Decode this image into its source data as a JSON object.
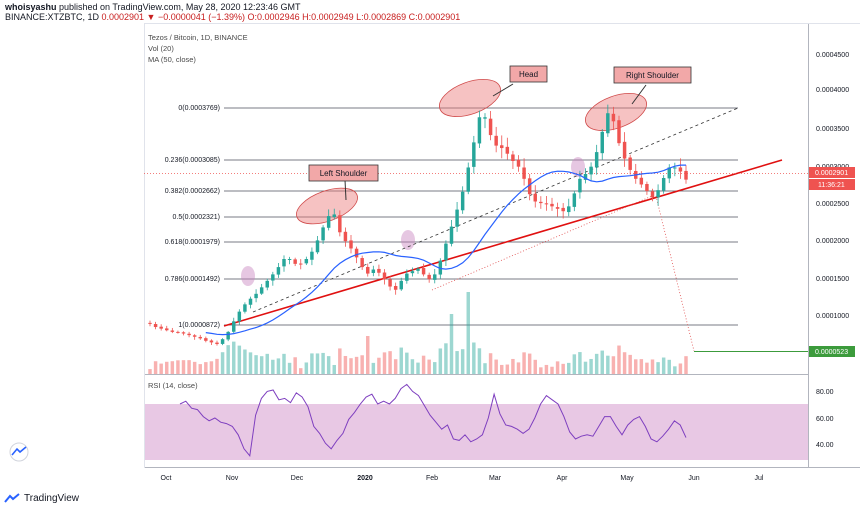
{
  "header": {
    "line1_author": "whoisyashu",
    "line1_rest": " published on TradingView.com, May 28, 2020 12:23:46 GMT",
    "line2_symbol": "BINANCE:XTZBTC, 1D ",
    "line2_ohlc": "0.0002901 ▼ −0.0000041 (−1.39%) O:0.0002946 H:0.0002949 L:0.0002869 C:0.0002901"
  },
  "legend": {
    "title": "Tezos / Bitcoin, 1D, BINANCE",
    "vol": "Vol (20)",
    "ma": "MA (50, close)",
    "rsi": "RSI (14, close)"
  },
  "price_axis": {
    "labels": [
      "0.0004500",
      "0.0004000",
      "0.0003500",
      "0.0003000",
      "0.0002500",
      "0.0002000",
      "0.0001500",
      "0.0001000"
    ],
    "current_price": "0.0002901",
    "countdown": "11:36:21",
    "target_price": "0.0000523"
  },
  "rsi_axis": {
    "labels": [
      "80.00",
      "60.00",
      "40.00"
    ]
  },
  "time_axis": {
    "labels": [
      "Oct",
      "Nov",
      "Dec",
      "2020",
      "Feb",
      "Mar",
      "Apr",
      "May",
      "Jun",
      "Jul"
    ]
  },
  "fib_levels": [
    "0(0.0003769)",
    "0.236(0.0003085)",
    "0.382(0.0002662)",
    "0.5(0.0002321)",
    "0.618(0.0001979)",
    "0.786(0.0001492)",
    "1(0.0000872)"
  ],
  "callouts": {
    "head": "Head",
    "left_shoulder": "Left Shoulder",
    "right_shoulder": "Right Shoulder"
  },
  "footer": {
    "brand": "TradingView"
  },
  "colors": {
    "candle_up": "#26a69a",
    "candle_down": "#ef5350",
    "ma": "#2962ff",
    "trendline": "#e01010",
    "rsi_line": "#7e3fbf",
    "rsi_band": "#e8c8e4",
    "callout_fill": "#f2a8a8",
    "target_label": "#3c9b3c"
  },
  "chart_data": {
    "type": "candlestick",
    "symbol": "BINANCE:XTZBTC",
    "interval": "1D",
    "close": [
      0.000112,
      0.000108,
      0.000106,
      0.000104,
      0.000102,
      0.000101,
      0.0001,
      9.8e-05,
      9.6e-05,
      9.4e-05,
      9.1e-05,
      8.9e-05,
      8.7e-05,
      9.3e-05,
      0.000102,
      0.000115,
      0.000127,
      0.000136,
      0.000143,
      0.000149,
      0.000157,
      0.000165,
      0.000173,
      0.000182,
      0.000192,
      0.000192,
      0.000186,
      0.000186,
      0.000192,
      0.000201,
      0.000215,
      0.000231,
      0.000245,
      0.000247,
      0.000225,
      0.000214,
      0.000205,
      0.000194,
      0.000182,
      0.000174,
      0.000179,
      0.000175,
      0.000167,
      0.000158,
      0.000154,
      0.000165,
      0.000174,
      0.000177,
      0.00018,
      0.000173,
      0.000167,
      0.000173,
      0.00019,
      0.000211,
      0.000232,
      0.000253,
      0.000275,
      0.000305,
      0.000336,
      0.000367,
      0.000367,
      0.000345,
      0.000332,
      0.000329,
      0.000322,
      0.000313,
      0.000306,
      0.000291,
      0.000272,
      0.000263,
      0.000261,
      0.00026,
      0.000257,
      0.000254,
      0.000251,
      0.000257,
      0.000273,
      0.000291,
      0.000297,
      0.000306,
      0.000324,
      0.000349,
      0.000372,
      0.000362,
      0.000335,
      0.000316,
      0.000302,
      0.000291,
      0.000284,
      0.000276,
      0.000268,
      0.000277,
      0.000292,
      0.000305,
      0.000305,
      0.0003,
      0.00029
    ],
    "ma50_visible": true,
    "rsi": [
      70,
      72,
      67,
      66,
      61,
      58,
      60,
      57,
      56,
      54,
      48,
      38,
      33,
      62,
      74,
      79,
      80,
      73,
      74,
      71,
      78,
      75,
      68,
      54,
      49,
      42,
      38,
      44,
      49,
      59,
      64,
      70,
      75,
      77,
      70,
      72,
      70,
      74,
      81,
      84,
      79,
      76,
      69,
      62,
      57,
      52,
      55,
      45,
      44,
      48,
      43,
      45,
      48,
      60,
      77,
      63,
      55,
      54,
      52,
      49,
      52,
      60,
      70,
      76,
      73,
      70,
      61,
      50,
      45,
      47,
      48,
      47,
      54,
      61,
      61,
      54,
      48,
      55,
      59,
      61,
      54,
      45,
      43,
      47,
      52,
      58,
      55,
      46
    ],
    "rsi_levels": [
      70,
      30
    ],
    "fibonacci_ratios": [
      0,
      0.236,
      0.382,
      0.5,
      0.618,
      0.786,
      1
    ],
    "fibonacci_prices": [
      0.0003769,
      0.0003085,
      0.0002662,
      0.0002321,
      0.0001979,
      0.0001492,
      8.72e-05
    ],
    "y_range": [
      5e-05,
      0.0004834
    ],
    "rsi_range": [
      25,
      90
    ],
    "target_price": 5.23e-05
  }
}
